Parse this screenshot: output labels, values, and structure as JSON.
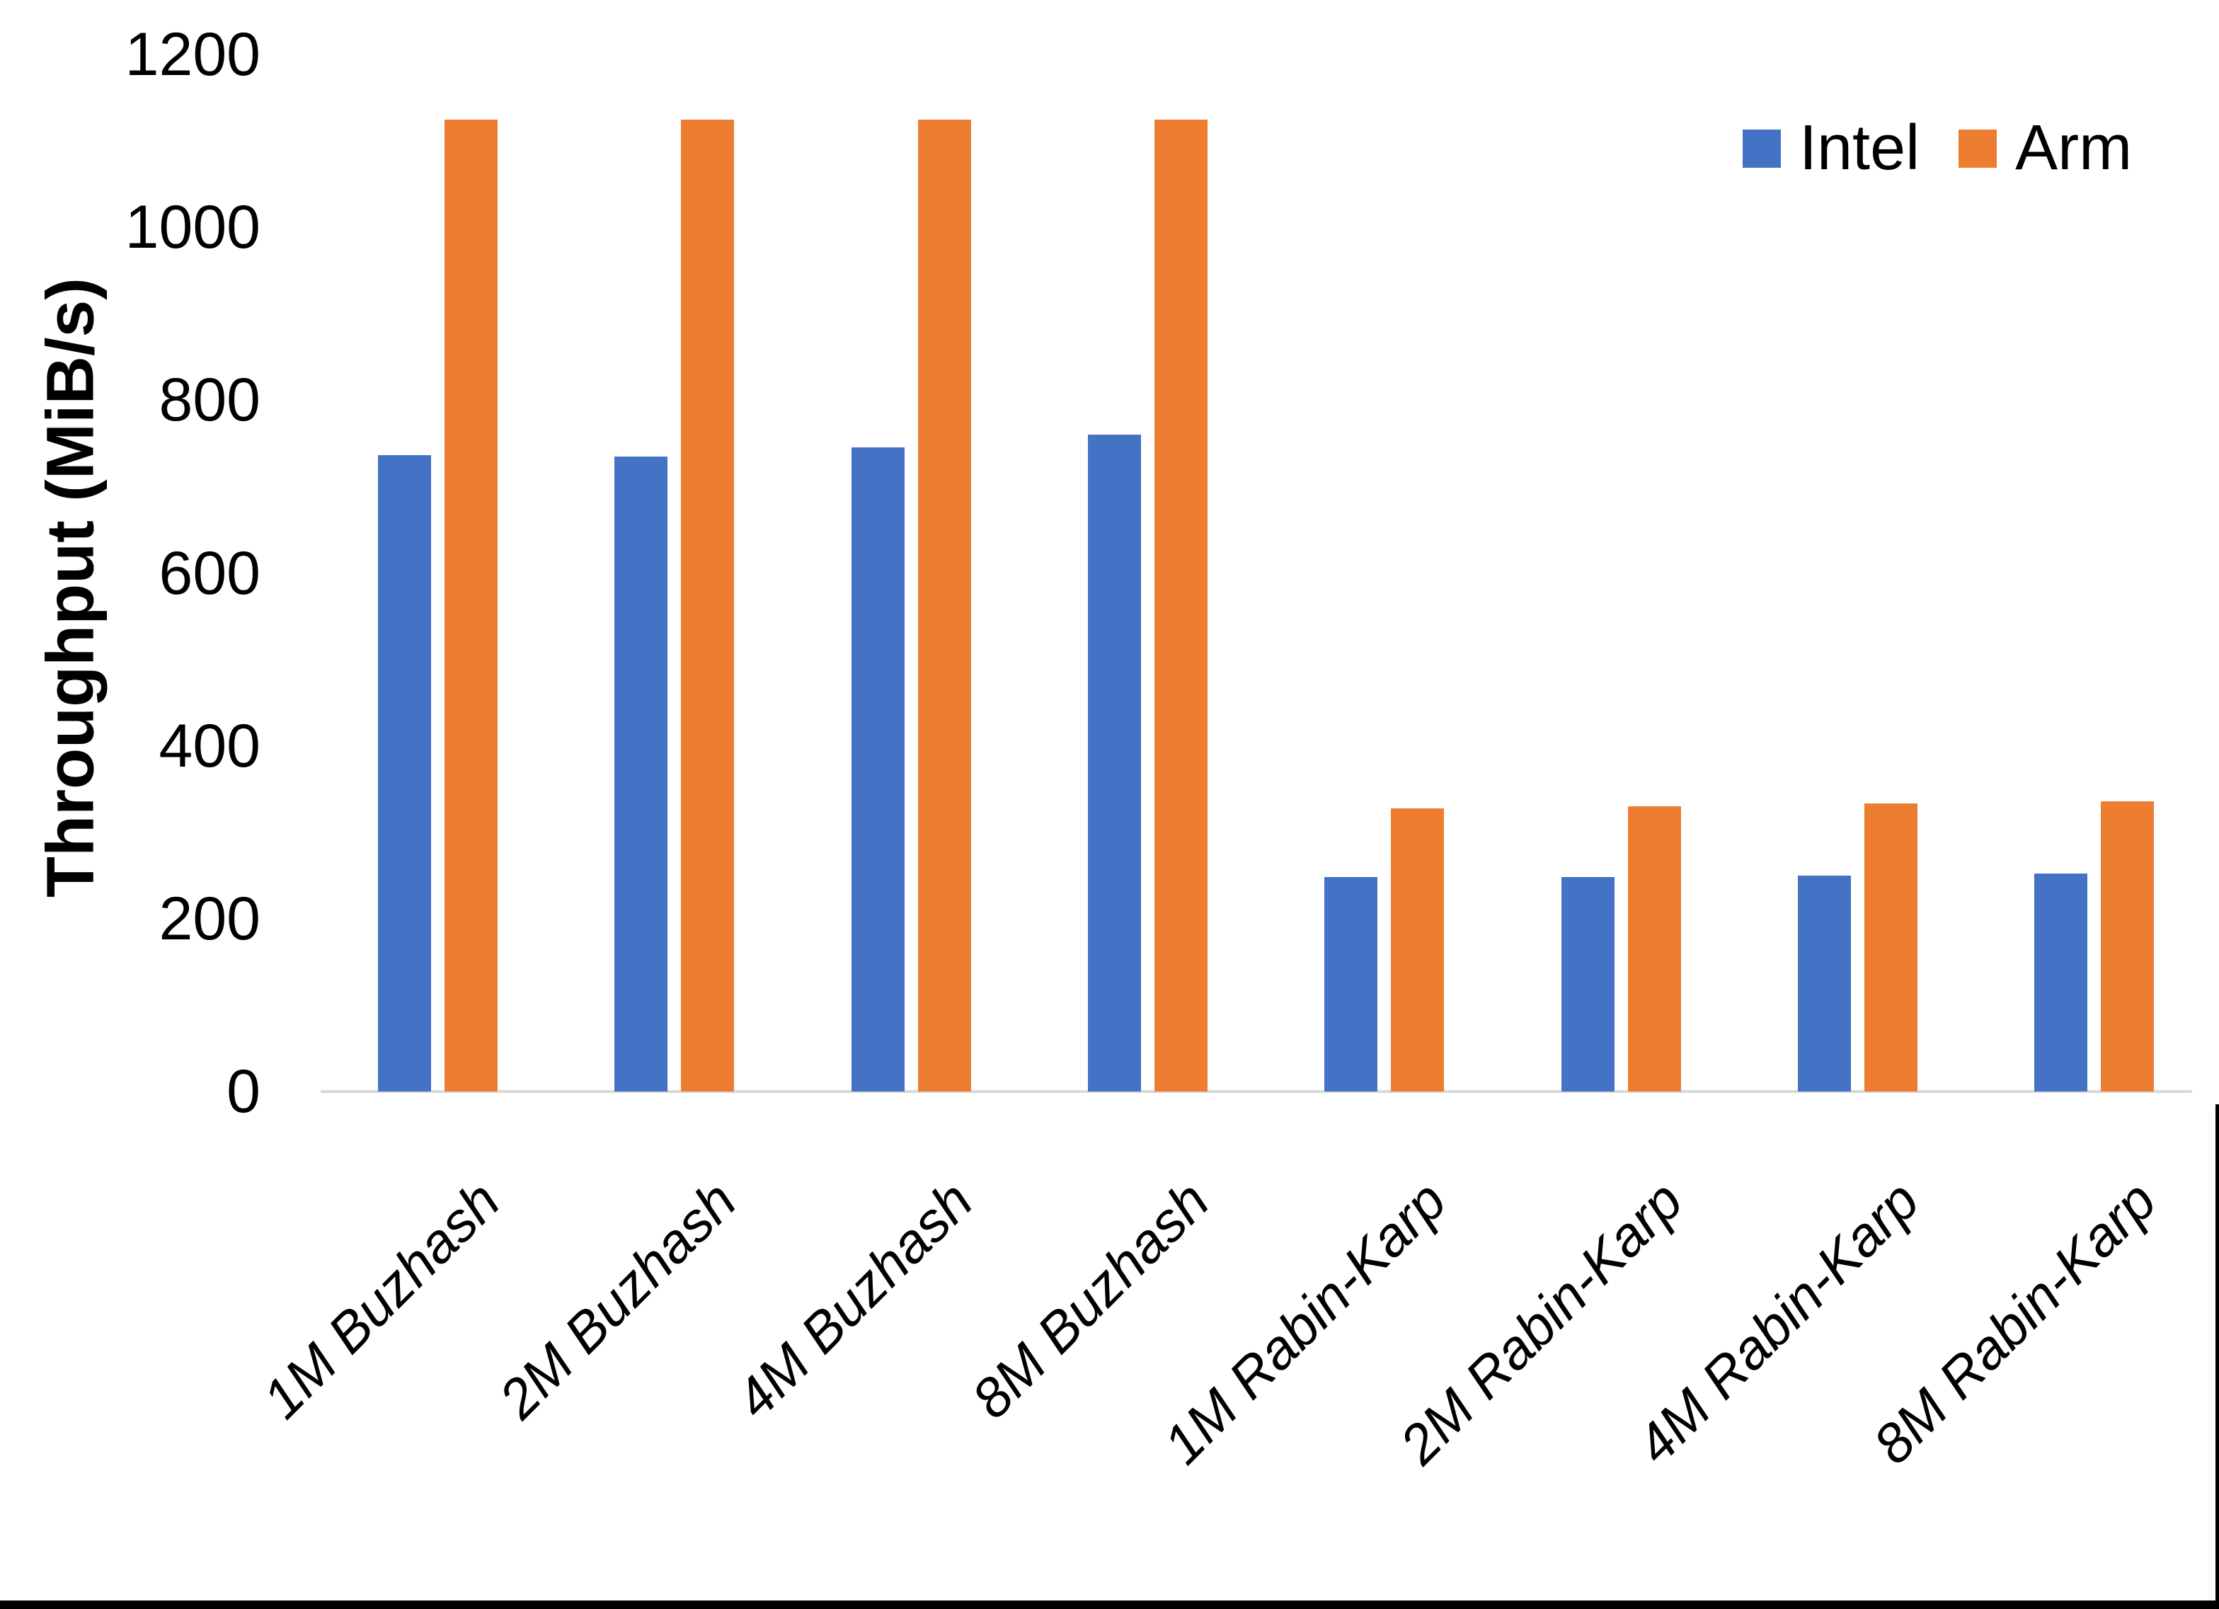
{
  "chart_data": {
    "type": "bar",
    "title": "",
    "xlabel": "",
    "ylabel": "Throughput (MiB/s)",
    "ylim": [
      0,
      1200
    ],
    "yticks": [
      0,
      200,
      400,
      600,
      800,
      1000,
      1200
    ],
    "grid": "off",
    "legend_position": "top-right",
    "categories": [
      "1M Buzhash",
      "2M Buzhash",
      "4M Buzhash",
      "8M Buzhash",
      "1M Rabin-Karp",
      "2M Rabin-Karp",
      "4M Rabin-Karp",
      "8M Rabin-Karp"
    ],
    "series": [
      {
        "name": "Intel",
        "color": "#4472C4",
        "values": [
          736,
          735,
          745,
          760,
          248,
          248,
          250,
          252
        ]
      },
      {
        "name": "Arm",
        "color": "#ED7D31",
        "values": [
          1125,
          1125,
          1125,
          1125,
          328,
          330,
          333,
          336
        ]
      }
    ],
    "axis_line_color": "#D9D9D9",
    "text_color": "#000000"
  }
}
